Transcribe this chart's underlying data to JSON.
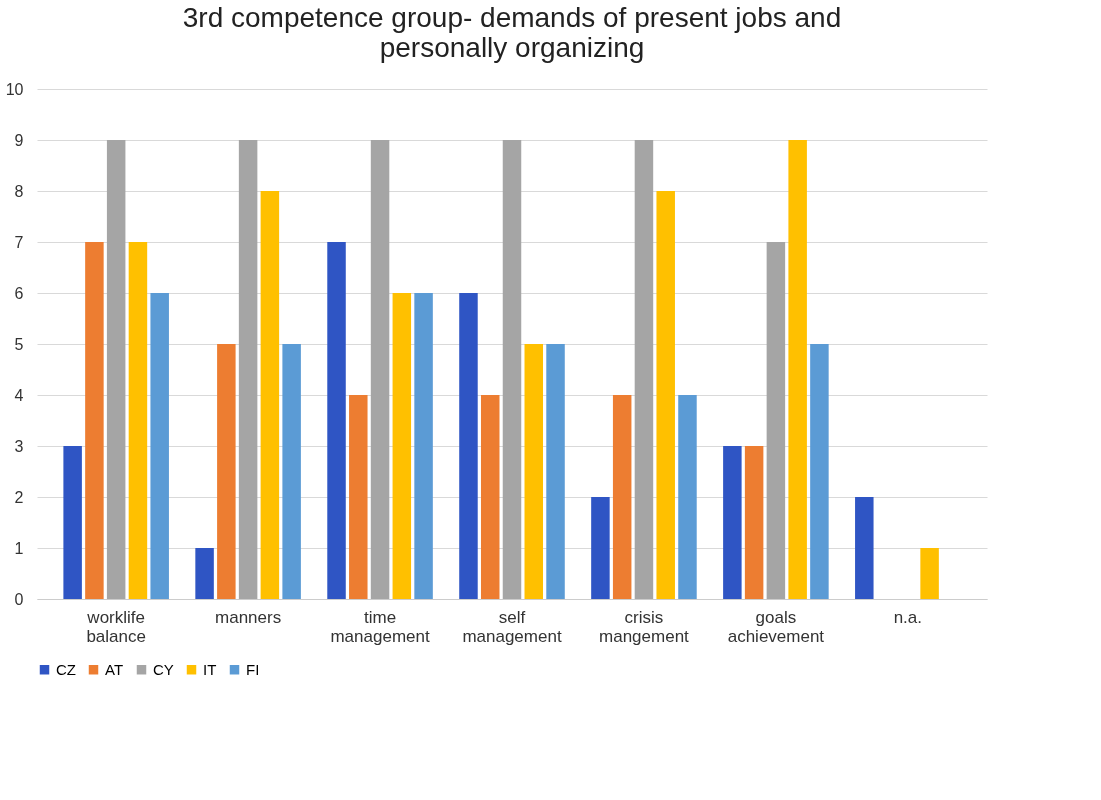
{
  "chart_data": {
    "type": "bar",
    "title": "3rd competence group- demands of present jobs and personally organizing",
    "categories": [
      "worklife balance",
      "manners",
      "time management",
      "self management",
      "crisis mangement",
      "goals achievement",
      "n.a."
    ],
    "series": [
      {
        "name": "CZ",
        "color": "#2f55c4",
        "values": [
          3,
          1,
          7,
          6,
          2,
          3,
          2
        ]
      },
      {
        "name": "AT",
        "color": "#ed7d31",
        "values": [
          7,
          5,
          4,
          4,
          4,
          3,
          null
        ]
      },
      {
        "name": "CY",
        "color": "#a5a5a5",
        "values": [
          9,
          9,
          9,
          9,
          9,
          7,
          null
        ]
      },
      {
        "name": "IT",
        "color": "#ffc000",
        "values": [
          7,
          8,
          6,
          5,
          8,
          9,
          1
        ]
      },
      {
        "name": "FI",
        "color": "#5b9bd5",
        "values": [
          6,
          5,
          6,
          5,
          4,
          5,
          null
        ]
      }
    ],
    "ylim": [
      0,
      10
    ],
    "yticks": [
      0,
      1,
      2,
      3,
      4,
      5,
      6,
      7,
      8,
      9,
      10
    ],
    "grid": "y",
    "legend": "bottom"
  }
}
